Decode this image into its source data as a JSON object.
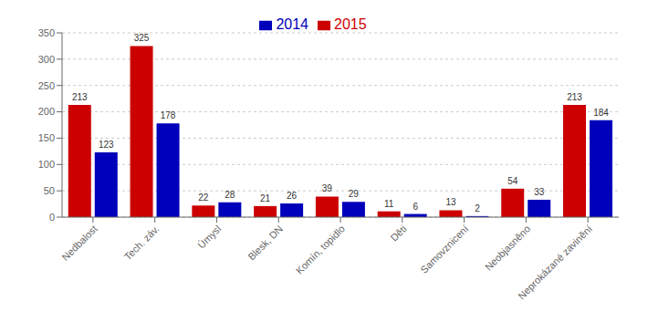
{
  "chart_data": {
    "type": "bar",
    "categories": [
      "Nedbalost",
      "Tech. záv.",
      "Úmysl",
      "Blesk, DN",
      "Komín, topidlo",
      "Děti",
      "Samovznicení",
      "Neobjasněno",
      "Neprokázané zavinění"
    ],
    "series": [
      {
        "name": "2015",
        "color": "#cc0000",
        "values": [
          213,
          325,
          22,
          21,
          39,
          11,
          13,
          54,
          213
        ]
      },
      {
        "name": "2014",
        "color": "#0000bb",
        "values": [
          123,
          178,
          28,
          26,
          29,
          6,
          2,
          33,
          184
        ]
      }
    ],
    "ylim": [
      0,
      350
    ],
    "yticks": [
      0,
      50,
      100,
      150,
      200,
      250,
      300,
      350
    ],
    "grid": true,
    "legend": "top",
    "data_labels": true
  }
}
